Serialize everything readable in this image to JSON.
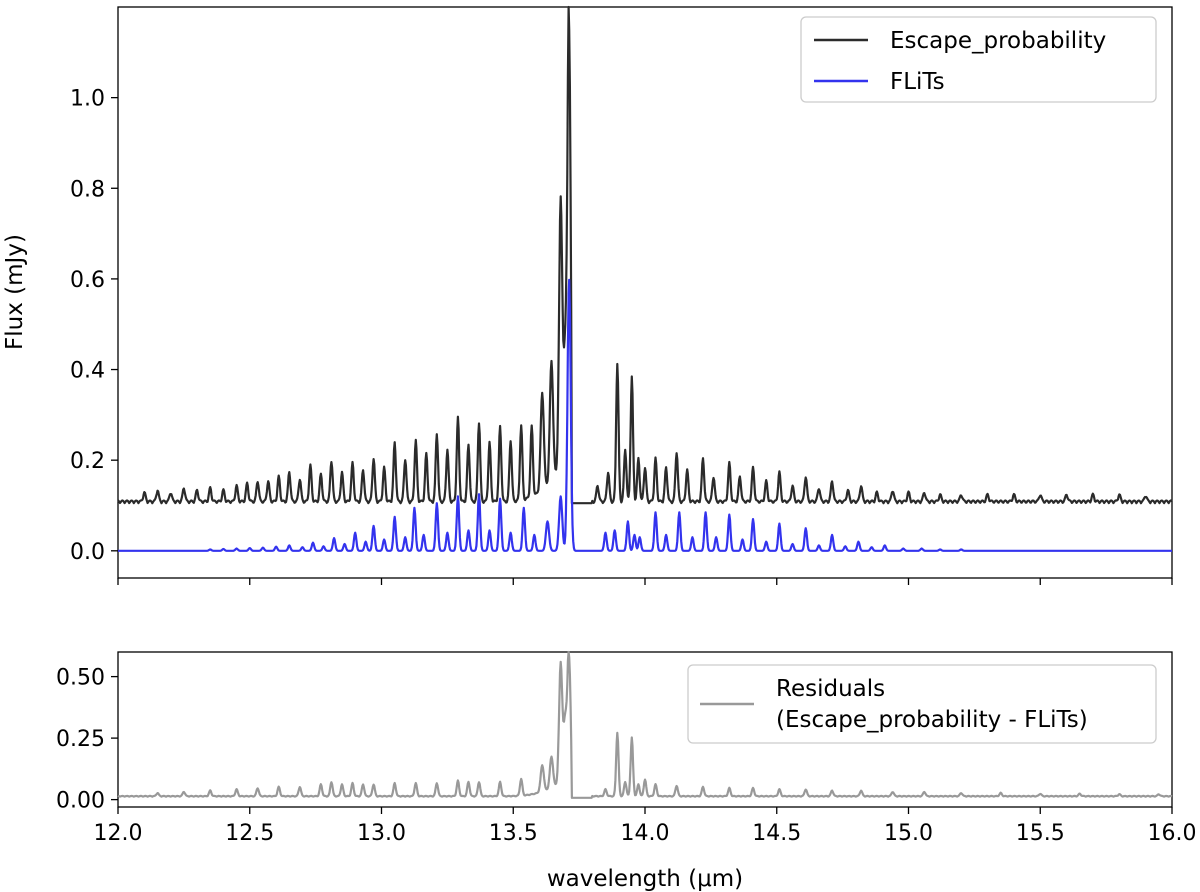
{
  "chart_data": [
    {
      "type": "line",
      "xlabel": "",
      "ylabel": "Flux (mJy)",
      "xlim": [
        12.0,
        16.0
      ],
      "ylim": [
        -0.06,
        1.2
      ],
      "xticks": [
        12.0,
        12.5,
        13.0,
        13.5,
        14.0,
        14.5,
        15.0,
        15.5,
        16.0
      ],
      "xtick_labels_visible": false,
      "yticks": [
        0.0,
        0.2,
        0.4,
        0.6,
        0.8,
        1.0
      ],
      "ytick_labels": [
        "0.0",
        "0.2",
        "0.4",
        "0.6",
        "0.8",
        "1.0"
      ],
      "grid": false,
      "legend": {
        "placement": "top-right",
        "entries": [
          {
            "label": "Escape_probability",
            "color": "#2b2b2b"
          },
          {
            "label": "FLiTs",
            "color": "#3333ee"
          }
        ]
      },
      "series": [
        {
          "name": "Escape_probability",
          "color": "#2b2b2b",
          "baseline": 0.105,
          "lines": [
            [
              12.1,
              0.125
            ],
            [
              12.15,
              0.13
            ],
            [
              12.2,
              0.125
            ],
            [
              12.25,
              0.135
            ],
            [
              12.3,
              0.13
            ],
            [
              12.35,
              0.135
            ],
            [
              12.4,
              0.13
            ],
            [
              12.45,
              0.14
            ],
            [
              12.49,
              0.145
            ],
            [
              12.53,
              0.15
            ],
            [
              12.57,
              0.15
            ],
            [
              12.61,
              0.16
            ],
            [
              12.65,
              0.17
            ],
            [
              12.69,
              0.155
            ],
            [
              12.73,
              0.185
            ],
            [
              12.77,
              0.165
            ],
            [
              12.81,
              0.195
            ],
            [
              12.85,
              0.17
            ],
            [
              12.89,
              0.19
            ],
            [
              12.93,
              0.175
            ],
            [
              12.97,
              0.2
            ],
            [
              13.01,
              0.18
            ],
            [
              13.05,
              0.235
            ],
            [
              13.09,
              0.2
            ],
            [
              13.13,
              0.24
            ],
            [
              13.17,
              0.21
            ],
            [
              13.21,
              0.255
            ],
            [
              13.25,
              0.22
            ],
            [
              13.29,
              0.29
            ],
            [
              13.33,
              0.23
            ],
            [
              13.37,
              0.28
            ],
            [
              13.41,
              0.235
            ],
            [
              13.45,
              0.27
            ],
            [
              13.49,
              0.24
            ],
            [
              13.53,
              0.27
            ],
            [
              13.57,
              0.26
            ],
            [
              13.61,
              0.32
            ],
            [
              13.645,
              0.37
            ],
            [
              13.68,
              0.7
            ],
            [
              13.697,
              0.34
            ],
            [
              13.712,
              1.14
            ],
            [
              13.82,
              0.14
            ],
            [
              13.86,
              0.17
            ],
            [
              13.895,
              0.41
            ],
            [
              13.925,
              0.22
            ],
            [
              13.95,
              0.38
            ],
            [
              13.975,
              0.2
            ],
            [
              14.0,
              0.18
            ],
            [
              14.04,
              0.2
            ],
            [
              14.08,
              0.18
            ],
            [
              14.12,
              0.215
            ],
            [
              14.16,
              0.175
            ],
            [
              14.22,
              0.2
            ],
            [
              14.26,
              0.16
            ],
            [
              14.32,
              0.19
            ],
            [
              14.36,
              0.16
            ],
            [
              14.41,
              0.18
            ],
            [
              14.46,
              0.15
            ],
            [
              14.51,
              0.17
            ],
            [
              14.56,
              0.14
            ],
            [
              14.61,
              0.16
            ],
            [
              14.66,
              0.135
            ],
            [
              14.71,
              0.15
            ],
            [
              14.77,
              0.13
            ],
            [
              14.82,
              0.14
            ],
            [
              14.88,
              0.125
            ],
            [
              14.94,
              0.13
            ],
            [
              15.0,
              0.125
            ],
            [
              15.06,
              0.125
            ],
            [
              15.12,
              0.12
            ],
            [
              15.2,
              0.12
            ],
            [
              15.3,
              0.12
            ],
            [
              15.4,
              0.12
            ],
            [
              15.5,
              0.12
            ],
            [
              15.6,
              0.12
            ],
            [
              15.7,
              0.12
            ],
            [
              15.8,
              0.12
            ],
            [
              15.9,
              0.118
            ]
          ]
        },
        {
          "name": "FLiTs",
          "color": "#3333ee",
          "baseline": 0.0,
          "lines": [
            [
              12.35,
              0.003
            ],
            [
              12.4,
              0.004
            ],
            [
              12.45,
              0.005
            ],
            [
              12.5,
              0.006
            ],
            [
              12.55,
              0.007
            ],
            [
              12.6,
              0.009
            ],
            [
              12.65,
              0.012
            ],
            [
              12.7,
              0.008
            ],
            [
              12.74,
              0.018
            ],
            [
              12.78,
              0.01
            ],
            [
              12.82,
              0.028
            ],
            [
              12.86,
              0.015
            ],
            [
              12.9,
              0.04
            ],
            [
              12.94,
              0.02
            ],
            [
              12.97,
              0.055
            ],
            [
              13.01,
              0.025
            ],
            [
              13.05,
              0.075
            ],
            [
              13.09,
              0.03
            ],
            [
              13.125,
              0.095
            ],
            [
              13.16,
              0.035
            ],
            [
              13.21,
              0.105
            ],
            [
              13.25,
              0.04
            ],
            [
              13.29,
              0.12
            ],
            [
              13.33,
              0.045
            ],
            [
              13.37,
              0.125
            ],
            [
              13.41,
              0.045
            ],
            [
              13.45,
              0.115
            ],
            [
              13.49,
              0.04
            ],
            [
              13.54,
              0.095
            ],
            [
              13.58,
              0.035
            ],
            [
              13.63,
              0.065
            ],
            [
              13.68,
              0.12
            ],
            [
              13.712,
              0.6
            ],
            [
              13.85,
              0.04
            ],
            [
              13.885,
              0.045
            ],
            [
              13.935,
              0.065
            ],
            [
              13.96,
              0.035
            ],
            [
              13.98,
              0.03
            ],
            [
              14.04,
              0.085
            ],
            [
              14.08,
              0.035
            ],
            [
              14.13,
              0.085
            ],
            [
              14.18,
              0.03
            ],
            [
              14.23,
              0.085
            ],
            [
              14.27,
              0.03
            ],
            [
              14.32,
              0.08
            ],
            [
              14.37,
              0.025
            ],
            [
              14.41,
              0.07
            ],
            [
              14.46,
              0.02
            ],
            [
              14.51,
              0.06
            ],
            [
              14.56,
              0.015
            ],
            [
              14.61,
              0.05
            ],
            [
              14.66,
              0.012
            ],
            [
              14.71,
              0.035
            ],
            [
              14.76,
              0.01
            ],
            [
              14.81,
              0.02
            ],
            [
              14.86,
              0.008
            ],
            [
              14.91,
              0.012
            ],
            [
              14.98,
              0.005
            ],
            [
              15.05,
              0.005
            ],
            [
              15.12,
              0.003
            ],
            [
              15.2,
              0.003
            ]
          ]
        }
      ]
    },
    {
      "type": "line",
      "xlabel": "wavelength (μm)",
      "ylabel": "",
      "xlim": [
        12.0,
        16.0
      ],
      "ylim": [
        -0.03,
        0.6
      ],
      "xticks": [
        12.0,
        12.5,
        13.0,
        13.5,
        14.0,
        14.5,
        15.0,
        15.5,
        16.0
      ],
      "xtick_labels": [
        "12.0",
        "12.5",
        "13.0",
        "13.5",
        "14.0",
        "14.5",
        "15.0",
        "15.5",
        "16.0"
      ],
      "yticks": [
        0.0,
        0.25,
        0.5
      ],
      "ytick_labels": [
        "0.00",
        "0.25",
        "0.50"
      ],
      "grid": false,
      "legend": {
        "placement": "top-right",
        "entries": [
          {
            "label": "Residuals",
            "label_line2": "(Escape_probability - FLiTs)",
            "color": "#999999"
          }
        ]
      },
      "series": [
        {
          "name": "Residuals",
          "color": "#999999",
          "baseline": 0.012,
          "lines": [
            [
              12.15,
              0.025
            ],
            [
              12.25,
              0.03
            ],
            [
              12.35,
              0.035
            ],
            [
              12.45,
              0.04
            ],
            [
              12.53,
              0.045
            ],
            [
              12.61,
              0.05
            ],
            [
              12.69,
              0.05
            ],
            [
              12.77,
              0.06
            ],
            [
              12.81,
              0.07
            ],
            [
              12.85,
              0.06
            ],
            [
              12.89,
              0.065
            ],
            [
              12.93,
              0.06
            ],
            [
              12.97,
              0.06
            ],
            [
              13.05,
              0.065
            ],
            [
              13.13,
              0.065
            ],
            [
              13.21,
              0.065
            ],
            [
              13.29,
              0.075
            ],
            [
              13.33,
              0.07
            ],
            [
              13.37,
              0.07
            ],
            [
              13.45,
              0.07
            ],
            [
              13.53,
              0.08
            ],
            [
              13.61,
              0.12
            ],
            [
              13.645,
              0.14
            ],
            [
              13.68,
              0.5
            ],
            [
              13.697,
              0.25
            ],
            [
              13.712,
              0.57
            ],
            [
              13.85,
              0.04
            ],
            [
              13.895,
              0.27
            ],
            [
              13.925,
              0.07
            ],
            [
              13.95,
              0.25
            ],
            [
              13.975,
              0.06
            ],
            [
              14.0,
              0.08
            ],
            [
              14.04,
              0.06
            ],
            [
              14.12,
              0.055
            ],
            [
              14.22,
              0.05
            ],
            [
              14.32,
              0.045
            ],
            [
              14.41,
              0.045
            ],
            [
              14.51,
              0.04
            ],
            [
              14.61,
              0.04
            ],
            [
              14.71,
              0.035
            ],
            [
              14.82,
              0.035
            ],
            [
              14.94,
              0.03
            ],
            [
              15.06,
              0.03
            ],
            [
              15.2,
              0.025
            ],
            [
              15.35,
              0.025
            ],
            [
              15.5,
              0.022
            ],
            [
              15.65,
              0.022
            ],
            [
              15.8,
              0.02
            ],
            [
              15.95,
              0.02
            ]
          ]
        }
      ]
    }
  ]
}
